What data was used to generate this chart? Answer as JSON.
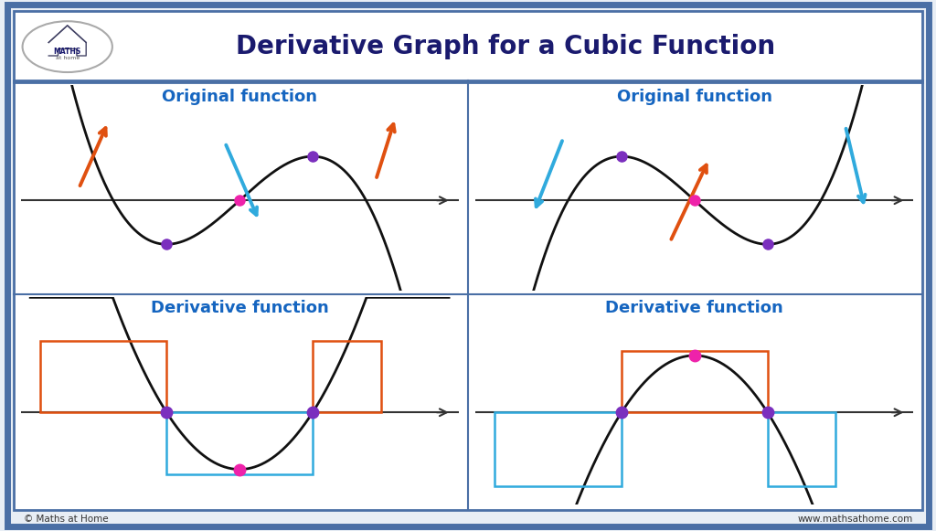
{
  "title": "Derivative Graph for a Cubic Function",
  "title_color": "#1a1a6e",
  "title_fontsize": 20,
  "subtitle_color": "#1565C0",
  "subtitle_fontsize": 13,
  "bg_color": "#e8eef5",
  "panel_bg": "#ffffff",
  "border_color": "#4a6fa5",
  "orange_red": "#e05010",
  "sky_blue": "#30aadd",
  "purple_dot": "#7b2fbe",
  "magenta_dot": "#ee22aa",
  "curve_color": "#111111",
  "axis_color": "#333333",
  "red_rect": "#e05010",
  "blue_rect": "#30aadd",
  "logo_text1": "MATHS",
  "logo_text2": "at home",
  "footer_left": "© Maths at Home",
  "footer_right": "www.mathsathome.com"
}
